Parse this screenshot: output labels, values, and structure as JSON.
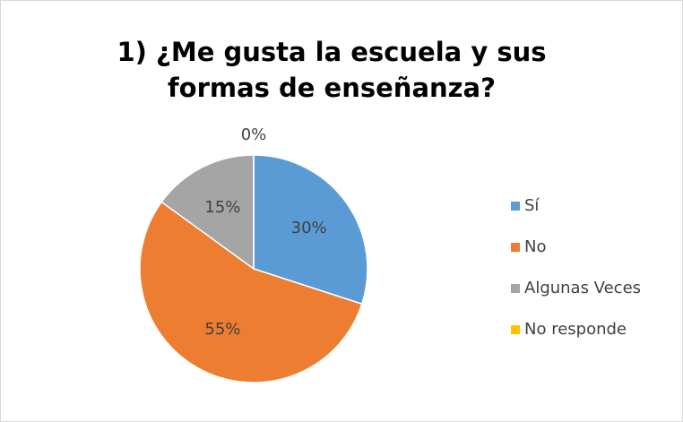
{
  "chart_data": {
    "type": "pie",
    "title": "1) ¿Me gusta la escuela y sus formas de enseñanza?",
    "categories": [
      "Sí",
      "No",
      "Algunas Veces",
      "No responde"
    ],
    "values": [
      30,
      55,
      15,
      0
    ],
    "value_labels": [
      "30%",
      "55%",
      "15%",
      "0%"
    ],
    "colors": [
      "#5b9bd5",
      "#ed7d31",
      "#a5a5a5",
      "#ffc000"
    ],
    "legend": "right"
  }
}
